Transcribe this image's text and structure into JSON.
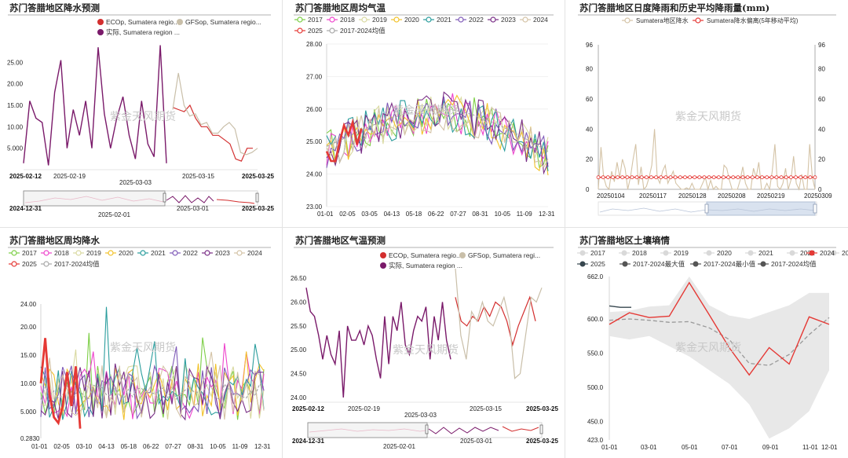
{
  "watermark": "紫金天风期货",
  "colors": {
    "y2017": "#7cce45",
    "y2018": "#ee44cc",
    "y2019": "#d9d9a0",
    "y2020": "#f2c22a",
    "y2021": "#2a9d9d",
    "y2022": "#7f5ab8",
    "y2023": "#7a2f87",
    "y2024": "#d4c3a6",
    "y2025": "#e53935",
    "avg": "#a8a8a8",
    "ecop": "#d32f2f",
    "gfsop": "#c9bfa9",
    "actual": "#7a1a6a"
  },
  "chart_data": [
    {
      "id": "rain_forecast",
      "type": "line",
      "title": "苏门答腊地区降水预测",
      "legend": [
        "ECOp, Sumatera regio...",
        "GFSop, Sumatera regio...",
        "实际, Sumatera region ..."
      ],
      "y_ticks": [
        "5.000",
        "10.00",
        "15.00",
        "20.00",
        "25.00"
      ],
      "ylim": [
        0,
        30
      ],
      "x_ticks": [
        "2025-02-12",
        "2025-02-19",
        "2025-03-03",
        "2025-03-15",
        "2025-03-25"
      ],
      "slider_labels": [
        "2024-12-31",
        "2025-02-01",
        "2025-03-01",
        "2025-03-25"
      ],
      "series": [
        {
          "name": "实际, Sumatera region ...",
          "values": [
            1.5,
            16,
            12,
            11,
            1,
            18,
            25.5,
            5,
            14,
            8,
            16,
            5,
            28.5,
            13,
            5,
            12,
            17,
            8,
            2.5,
            16,
            6,
            3,
            29,
            1.5
          ]
        },
        {
          "name": "ECOp, Sumatera regio...",
          "values": [
            14.5,
            14,
            13.5,
            15,
            12,
            10,
            10,
            8,
            8,
            7,
            6,
            2.5,
            2,
            5,
            5
          ]
        },
        {
          "name": "GFSop, Sumatera regio...",
          "values": [
            14,
            22.5,
            15,
            12.5,
            13,
            10.5,
            11,
            8.5,
            8.5,
            10,
            11,
            9.5,
            4,
            3.5,
            4,
            5
          ]
        }
      ]
    },
    {
      "id": "weekly_temp",
      "type": "line",
      "title": "苏门答腊地区周均气温",
      "legend": [
        "2017",
        "2018",
        "2019",
        "2020",
        "2021",
        "2022",
        "2023",
        "2024",
        "2025",
        "2017-2024均值"
      ],
      "y_ticks": [
        "23.00",
        "24.00",
        "25.00",
        "26.00",
        "27.00",
        "28.00"
      ],
      "ylim": [
        23,
        28
      ],
      "x_ticks": [
        "01-01",
        "02-05",
        "03-05",
        "04-13",
        "05-18",
        "06-22",
        "07-27",
        "08-31",
        "10-05",
        "11-09",
        "12-31"
      ],
      "series_2025": [
        24.7,
        24.4,
        24.4,
        25,
        25.5,
        25.2,
        25.6,
        24.9,
        25.4
      ]
    },
    {
      "id": "daily_rain",
      "type": "line",
      "title": "苏门答腊地区日度降雨和历史平均降雨量(mm)",
      "legend": [
        "Sumatera地区降水",
        "Sumatera降水偏离(5年移动平均)"
      ],
      "y_ticks": [
        "0",
        "20",
        "40",
        "60",
        "80",
        "96"
      ],
      "ylim": [
        0,
        96
      ],
      "x_ticks": [
        "20250104",
        "20250117",
        "20250128",
        "20250208",
        "20250219",
        "20250309"
      ],
      "avg_level": 8,
      "values": [
        0,
        28,
        8,
        2,
        0,
        12,
        5,
        18,
        8,
        20,
        14,
        0,
        8,
        20,
        30,
        3,
        15,
        0,
        2,
        8,
        16,
        40,
        8,
        4,
        12,
        16,
        4,
        8,
        12,
        4,
        2,
        0,
        0,
        1,
        0,
        4,
        0,
        0,
        0,
        4,
        8,
        0,
        6,
        0,
        2,
        0,
        0,
        16,
        14,
        6,
        0,
        0,
        0,
        6,
        15,
        4,
        0,
        0,
        14,
        8,
        18,
        0,
        0,
        4,
        0,
        12,
        30,
        2,
        0,
        4,
        14,
        0,
        6,
        22,
        4,
        0,
        10,
        0,
        0,
        30,
        8,
        0
      ]
    },
    {
      "id": "weekly_rain",
      "type": "line",
      "title": "苏门答腊地区周均降水",
      "legend": [
        "2017",
        "2018",
        "2019",
        "2020",
        "2021",
        "2022",
        "2023",
        "2024",
        "2025",
        "2017-2024均值"
      ],
      "y_ticks": [
        "0.2830",
        "5.000",
        "10.00",
        "15.00",
        "20.00",
        "24.00"
      ],
      "ylim": [
        0.283,
        24
      ],
      "x_ticks": [
        "01-01",
        "02-05",
        "03-10",
        "04-13",
        "05-18",
        "06-22",
        "07-27",
        "08-31",
        "10-05",
        "11-09",
        "12-31"
      ],
      "series_2025": [
        10,
        18,
        8,
        4,
        3,
        6,
        12,
        6,
        13,
        2
      ]
    },
    {
      "id": "temp_forecast",
      "type": "line",
      "title": "苏门答腊地区气温预测",
      "legend": [
        "ECOp, Sumatera regio...",
        "GFSop, Sumatera regi...",
        "实际, Sumatera region ..."
      ],
      "y_ticks": [
        "24.00",
        "24.50",
        "25.00",
        "25.50",
        "26.00",
        "26.50"
      ],
      "ylim": [
        23.9,
        26.7
      ],
      "x_ticks": [
        "2025-02-12",
        "2025-02-19",
        "2025-03-03",
        "2025-03-15",
        "2025-03-25"
      ],
      "slider_labels": [
        "2024-12-31",
        "2025-02-01",
        "2025-03-01",
        "2025-03-25"
      ],
      "series": [
        {
          "name": "实际, Sumatera region ...",
          "values": [
            26.3,
            25.8,
            25.7,
            25.3,
            24.8,
            25.3,
            24.9,
            24.7,
            25.4,
            24,
            25.5,
            25.2,
            25.2,
            25.4,
            25.1,
            25.5,
            25.3,
            24.8,
            24.4,
            25.7,
            24.7,
            25.7,
            25.4,
            26.0,
            25.1,
            24.9,
            25.4,
            25.7,
            25.6,
            25.9,
            24.8,
            25.7,
            25.2,
            26.0,
            25.2,
            24.8
          ]
        },
        {
          "name": "ECOp, Sumatera regio...",
          "values": [
            26.1,
            25.6,
            25.5,
            25.7,
            25.6,
            25.9,
            25.7,
            26.0,
            25.9,
            25.6,
            25.1,
            25.5,
            25.8,
            26.1,
            25.6
          ]
        },
        {
          "name": "GFSop, Sumatera regi...",
          "values": [
            26.7,
            25.3,
            24.8,
            25.8,
            25.6,
            26.0,
            25.6,
            25.5,
            25.8,
            26.1,
            25.6,
            24.4,
            24.5,
            25.3,
            26.1,
            26.0,
            26.3
          ]
        }
      ]
    },
    {
      "id": "soil_moisture",
      "type": "area",
      "title": "苏门答腊地区土壤墒情",
      "legend": [
        "2017",
        "2018",
        "2019",
        "2020",
        "2021",
        "2022",
        "2023",
        "2024",
        "2025",
        "2017-2024最大值",
        "2017-2024最小值",
        "2017-2024均值"
      ],
      "y_ticks": [
        "423.0",
        "450.0",
        "500.0",
        "550.0",
        "600.0",
        "662.0"
      ],
      "ylim": [
        423,
        662
      ],
      "x_ticks": [
        "01-01",
        "03-01",
        "05-01",
        "07-01",
        "09-01",
        "11-01",
        "12-01"
      ],
      "months": [
        "01",
        "02",
        "03",
        "04",
        "05",
        "06",
        "07",
        "08",
        "09",
        "10",
        "11",
        "12"
      ],
      "y2024": [
        592,
        609,
        602,
        604,
        653,
        606,
        558,
        518,
        558,
        534,
        603,
        592
      ],
      "y2025": [
        619,
        617,
        617
      ],
      "max": [
        610,
        612,
        618,
        620,
        662,
        620,
        605,
        600,
        610,
        620,
        638,
        638
      ],
      "min": [
        575,
        570,
        575,
        560,
        545,
        525,
        505,
        475,
        425,
        440,
        465,
        525
      ],
      "avg": [
        598,
        600,
        598,
        595,
        596,
        587,
        570,
        535,
        532,
        548,
        577,
        602
      ]
    }
  ]
}
